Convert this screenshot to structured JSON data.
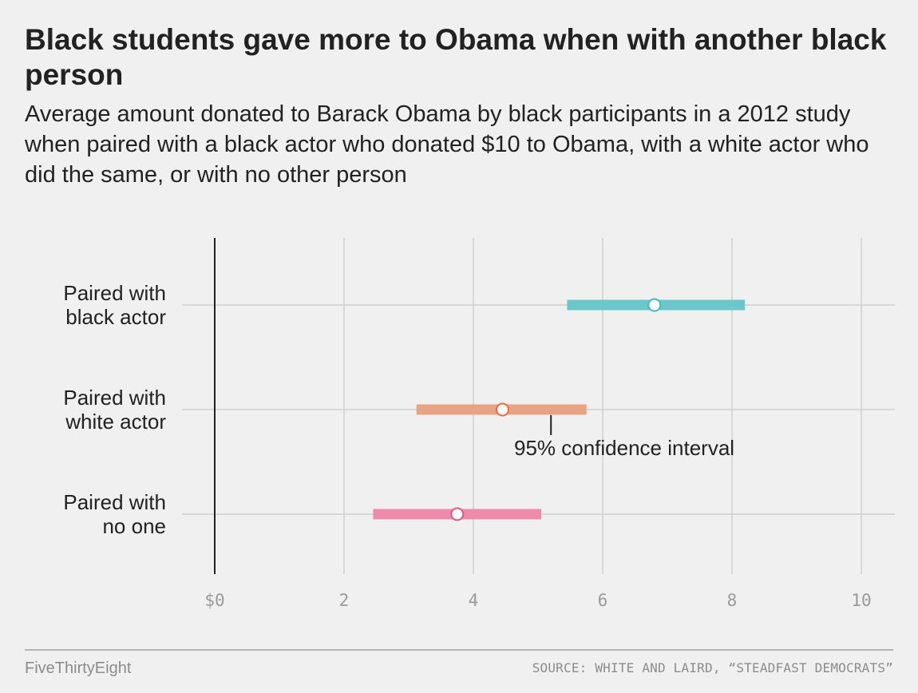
{
  "header": {
    "title": "Black students gave more to Obama when with another black person",
    "subtitle": "Average amount donated to Barack Obama by black participants in a 2012 study when paired with a black actor who donated $10 to Obama, with a white actor who did the same, or with no other person"
  },
  "chart_data": {
    "type": "dot-interval",
    "xlim": [
      0,
      10
    ],
    "x_ticks": [
      0,
      2,
      4,
      6,
      8,
      10
    ],
    "x_tick_labels": [
      "$0",
      "2",
      "4",
      "6",
      "8",
      "10"
    ],
    "grid": true,
    "rows": [
      {
        "label_lines": [
          "Paired with",
          "black actor"
        ],
        "mean": 6.8,
        "ci_low": 5.45,
        "ci_high": 8.2,
        "color": "#6cc7ca",
        "point_color": "#3dbcc1"
      },
      {
        "label_lines": [
          "Paired with",
          "white actor"
        ],
        "mean": 4.45,
        "ci_low": 3.12,
        "ci_high": 5.75,
        "color": "#e8a383",
        "point_color": "#ec6a3b"
      },
      {
        "label_lines": [
          "Paired with",
          "no one"
        ],
        "mean": 3.75,
        "ci_low": 2.45,
        "ci_high": 5.05,
        "color": "#f08aab",
        "point_color": "#ec4f86"
      }
    ],
    "annotation": {
      "text": "95% confidence interval",
      "row": 1,
      "x": 5.2
    }
  },
  "footer": {
    "brand": "FiveThirtyEight",
    "source": "SOURCE: WHITE AND LAIRD, “STEADFAST DEMOCRATS”"
  }
}
